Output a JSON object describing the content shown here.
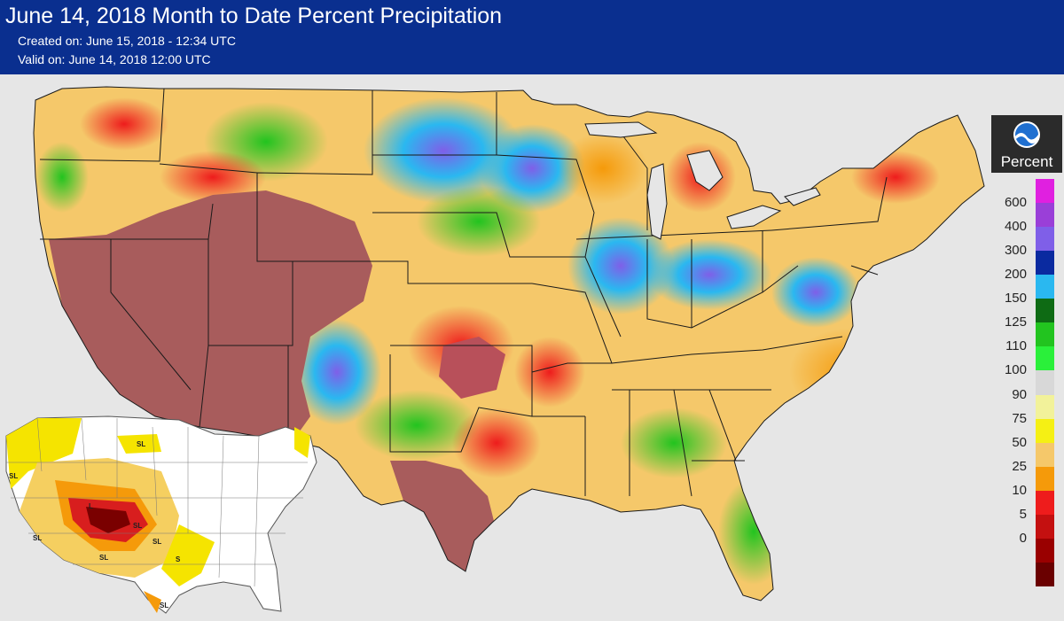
{
  "header": {
    "title": "June 14, 2018 Month to Date Percent Precipitation",
    "created": "Created on: June 15, 2018 - 12:34 UTC",
    "valid": "Valid on: June 14, 2018 12:00 UTC"
  },
  "legend": {
    "title": "Percent",
    "logo_icon": "noaa-logo",
    "classes": [
      {
        "label": "600",
        "color": "#e020e0"
      },
      {
        "label": "400",
        "color": "#9a3fd8"
      },
      {
        "label": "300",
        "color": "#7f5fe8"
      },
      {
        "label": "200",
        "color": "#0a2aa0"
      },
      {
        "label": "150",
        "color": "#2ab8f0"
      },
      {
        "label": "125",
        "color": "#0e6b14"
      },
      {
        "label": "110",
        "color": "#22c41f"
      },
      {
        "label": "100",
        "color": "#2af03a"
      },
      {
        "label": "90",
        "color": "#d8d8d8"
      },
      {
        "label": "75",
        "color": "#f2f29a"
      },
      {
        "label": "50",
        "color": "#f5f014"
      },
      {
        "label": "25",
        "color": "#f5c86a"
      },
      {
        "label": "10",
        "color": "#f59a0a"
      },
      {
        "label": "5",
        "color": "#ee1c1c"
      },
      {
        "label": "0",
        "color": "#c41010"
      }
    ],
    "bottom_colors": [
      "#9a0000",
      "#6a0000"
    ],
    "zero_label": "0"
  },
  "colors": {
    "header_bg": "#0a2f8f",
    "page_bg": "#e6e6e6",
    "dry_brown": "#a85c5c",
    "state_border": "#1a1a1a"
  },
  "inset": {
    "labels": [
      "SL",
      "SL",
      "SL",
      "L",
      "SL",
      "SL",
      "SL",
      "S",
      "SL"
    ]
  }
}
